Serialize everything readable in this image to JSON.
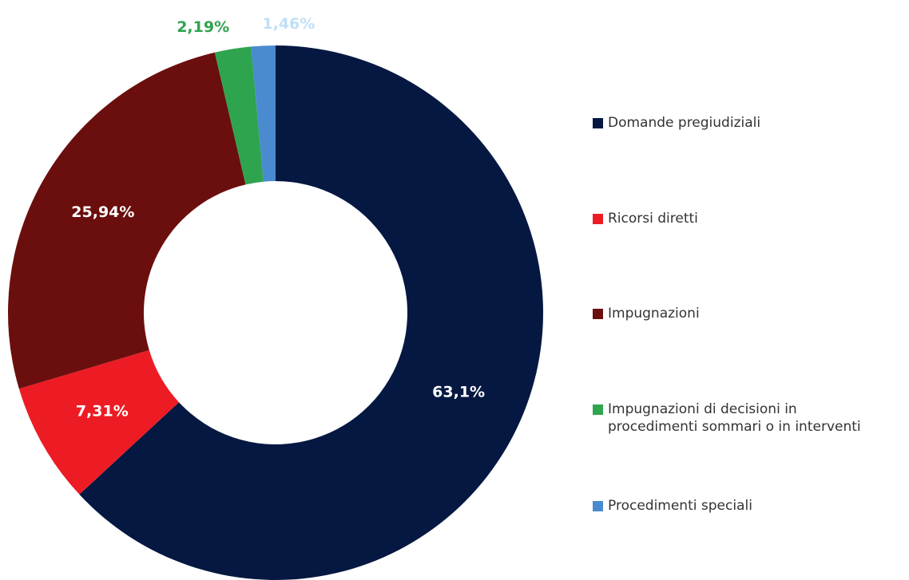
{
  "chart_data": {
    "type": "donut",
    "categories": [
      "Domande pregiudiziali",
      "Ricorsi diretti",
      "Impugnazioni",
      "Impugnazioni di decisioni in procedimenti sommari o in interventi",
      "Procedimenti speciali"
    ],
    "values": [
      63.1,
      7.31,
      25.94,
      2.19,
      1.46
    ],
    "value_labels": [
      "63,1%",
      "7,31%",
      "25,94%",
      "2,19%",
      "1,46%"
    ],
    "colors": [
      "#041841",
      "#ed1c24",
      "#6b0e0e",
      "#2ea44f",
      "#4a8bd0"
    ],
    "label_colors": [
      "#ffffff",
      "#ffffff",
      "#ffffff",
      "#2ea44f",
      "#bfe0f5"
    ],
    "legend": "right"
  }
}
